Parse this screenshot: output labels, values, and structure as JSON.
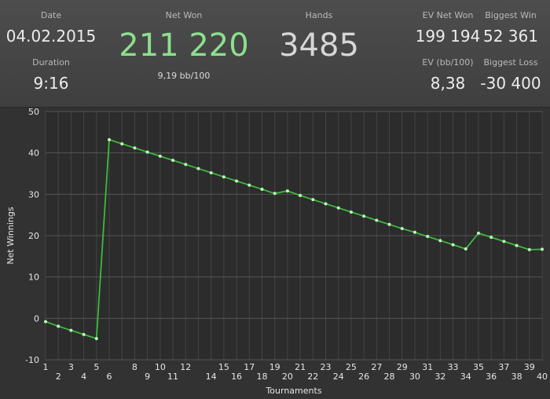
{
  "stats": {
    "date_label": "Date",
    "date_value": "04.02.2015",
    "duration_label": "Duration",
    "duration_value": "9:16",
    "net_won_label": "Net Won",
    "net_won_value": "211 220",
    "net_won_sub": "9,19 bb/100",
    "hands_label": "Hands",
    "hands_value": "3485",
    "ev_net_won_label": "EV Net Won",
    "ev_net_won_value": "199 194",
    "biggest_win_label": "Biggest Win",
    "biggest_win_value": "52 361",
    "ev_bb_label": "EV (bb/100)",
    "ev_bb_value": "8,38",
    "biggest_loss_label": "Biggest Loss",
    "biggest_loss_value": "-30 400"
  },
  "colors": {
    "net_won": "#8ce08c",
    "line": "#3cba3c",
    "point": "#bff5bf"
  },
  "chart_data": {
    "type": "line",
    "xlabel": "Tournaments",
    "ylabel": "Net Winnings",
    "xlim": [
      1,
      40
    ],
    "ylim": [
      -10,
      50
    ],
    "y_ticks": [
      -10,
      0,
      10,
      20,
      30,
      40,
      50
    ],
    "x_ticks_top": [
      1,
      3,
      5,
      8,
      10,
      12,
      15,
      17,
      19,
      21,
      23,
      25,
      27,
      29,
      31,
      33,
      35,
      37,
      39
    ],
    "x_ticks_bottom": [
      2,
      4,
      6,
      9,
      11,
      14,
      16,
      18,
      20,
      22,
      24,
      26,
      28,
      30,
      32,
      34,
      36,
      38,
      40
    ],
    "grid": true,
    "series": [
      {
        "x": [
          1,
          2,
          3,
          4,
          5,
          6,
          7,
          8,
          9,
          10,
          11,
          12,
          13,
          14,
          15,
          16,
          17,
          18,
          19,
          20,
          21,
          22,
          23,
          24,
          25,
          26,
          27,
          28,
          29,
          30,
          31,
          32,
          33,
          34,
          35,
          36,
          37,
          38,
          39,
          40
        ],
        "values": [
          -0.8,
          -1.9,
          -2.9,
          -3.9,
          -4.9,
          43.2,
          42.2,
          41.2,
          40.2,
          39.2,
          38.2,
          37.2,
          36.2,
          35.2,
          34.2,
          33.2,
          32.2,
          31.2,
          30.2,
          30.8,
          29.7,
          28.7,
          27.7,
          26.7,
          25.7,
          24.7,
          23.7,
          22.7,
          21.7,
          20.8,
          19.8,
          18.8,
          17.8,
          16.8,
          20.6,
          19.6,
          18.6,
          17.6,
          16.6,
          16.7
        ]
      }
    ]
  }
}
